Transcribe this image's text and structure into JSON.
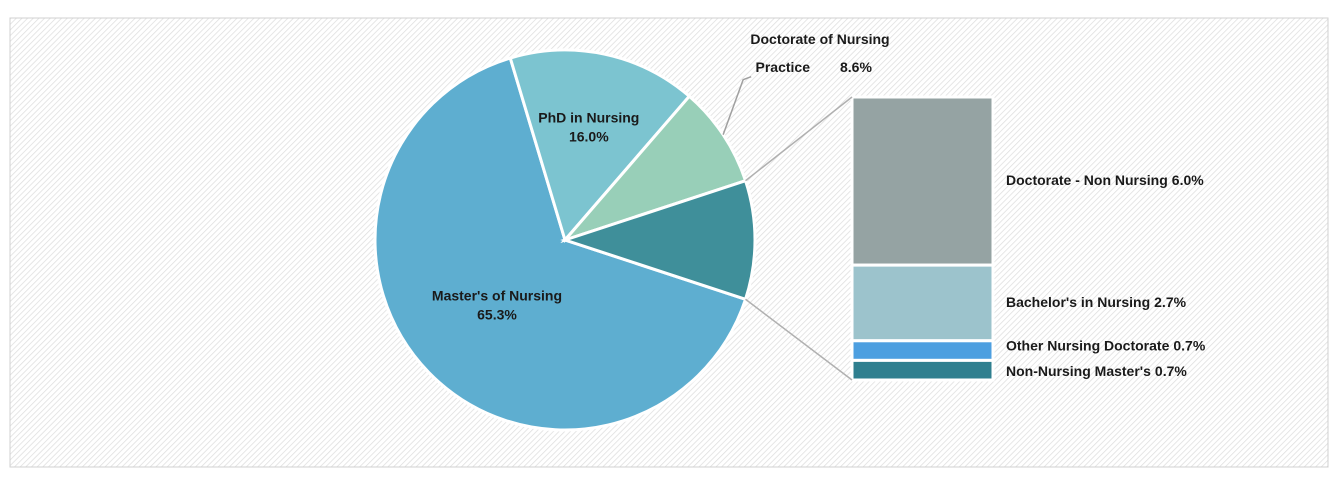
{
  "chart_data": {
    "type": "pie",
    "categories": [
      "Master's of Nursing",
      "PhD in Nursing",
      "Doctorate of Nursing Practice"
    ],
    "values": [
      65.3,
      16.0,
      8.6
    ],
    "value_labels": [
      "65.3%",
      "16.0%",
      "8.6%"
    ],
    "colors": [
      "#5eaed0",
      "#7cc4d0",
      "#98cfb8"
    ],
    "other_color": "#3f8f9a",
    "breakdown": {
      "categories": [
        "Doctorate - Non Nursing",
        "Bachelor's in Nursing",
        "Other Nursing Doctorate",
        "Non-Nursing Master's"
      ],
      "values": [
        6.0,
        2.7,
        0.7,
        0.7
      ],
      "value_labels": [
        "6.0%",
        "2.7%",
        "0.7%",
        "0.7%"
      ],
      "colors": [
        "#95a3a3",
        "#9cc3cc",
        "#4d9fe0",
        "#2f7f8f"
      ]
    }
  }
}
